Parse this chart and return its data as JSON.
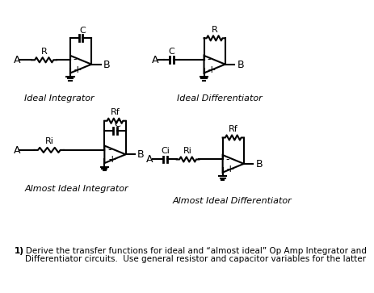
{
  "background_color": "#ffffff",
  "line_color": "#000000",
  "text_color": "#000000",
  "label_ideal_integrator": "Ideal Integrator",
  "label_ideal_differentiator": "Ideal Differentiator",
  "label_almost_ideal_integrator": "Almost Ideal Integrator",
  "label_almost_ideal_differentiator": "Almost Ideal Differentiator",
  "footer_line1": "1) Derive the transfer functions for ideal and “almost ideal” Op Amp Integrator and",
  "footer_line2": "    Differentiator circuits.  Use general resistor and capacitor variables for the latter",
  "lw": 1.5
}
